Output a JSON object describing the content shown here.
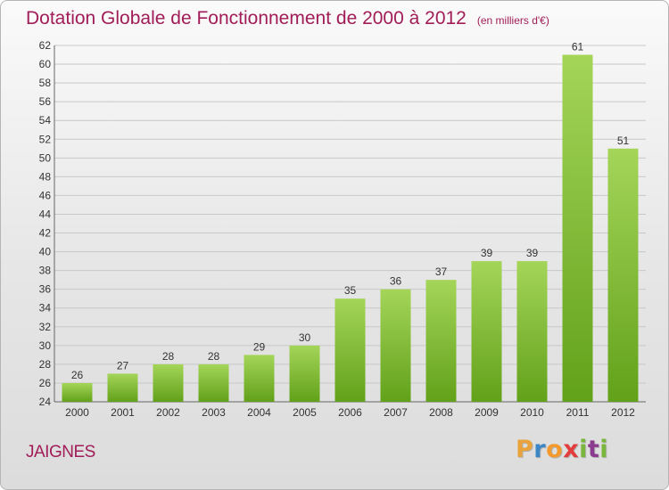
{
  "header": {
    "title": "Dotation Globale de Fonctionnement de 2000 à 2012",
    "unit": "(en milliers d'€)"
  },
  "commune": "JAIGNES",
  "logo": {
    "letters": [
      "P",
      "r",
      "o",
      "x",
      "i",
      "t",
      "i"
    ],
    "colors": [
      "#e8a33a",
      "#3d86c6",
      "#f29a2e",
      "#e23c3c",
      "#79b63b",
      "#8b3c8e",
      "#79b63b"
    ]
  },
  "colors": {
    "bar_light": "#a4d559",
    "bar_dark": "#62a11a",
    "grid": "#c8c8c8",
    "axis": "#666666"
  },
  "chart_data": {
    "type": "bar",
    "title": "Dotation Globale de Fonctionnement de 2000 à 2012",
    "xlabel": "",
    "ylabel": "",
    "categories": [
      "2000",
      "2001",
      "2002",
      "2003",
      "2004",
      "2005",
      "2006",
      "2007",
      "2008",
      "2009",
      "2010",
      "2011",
      "2012"
    ],
    "values": [
      26,
      27,
      28,
      28,
      29,
      30,
      35,
      36,
      37,
      39,
      39,
      61,
      51
    ],
    "ylim": [
      24,
      62
    ],
    "ytick_step": 2,
    "grid": true,
    "legend": "none"
  }
}
